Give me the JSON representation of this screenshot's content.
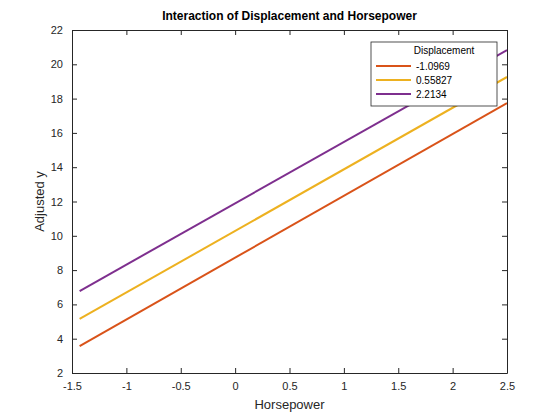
{
  "chart_data": {
    "type": "line",
    "title": "Interaction of Displacement and Horsepower",
    "x_label": "Horsepower",
    "y_label": "Adjusted y",
    "legend_title": "Displacement",
    "x": [
      -1.43,
      2.5
    ],
    "series": [
      {
        "name": "-1.0969",
        "color": "#d95319",
        "values": [
          3.57,
          17.74
        ]
      },
      {
        "name": "0.55827",
        "color": "#edb120",
        "values": [
          5.15,
          19.26
        ]
      },
      {
        "name": "2.2134",
        "color": "#7e2f8e",
        "values": [
          6.78,
          20.83
        ]
      }
    ],
    "xlim": [
      -1.5,
      2.5
    ],
    "xticks": [
      -1.5,
      -1,
      -0.5,
      0,
      0.5,
      1,
      1.5,
      2,
      2.5
    ],
    "ylim": [
      2,
      22
    ],
    "yticks": [
      2,
      4,
      6,
      8,
      10,
      12,
      14,
      16,
      18,
      20,
      22
    ],
    "legend": "upper right",
    "grid": false
  }
}
